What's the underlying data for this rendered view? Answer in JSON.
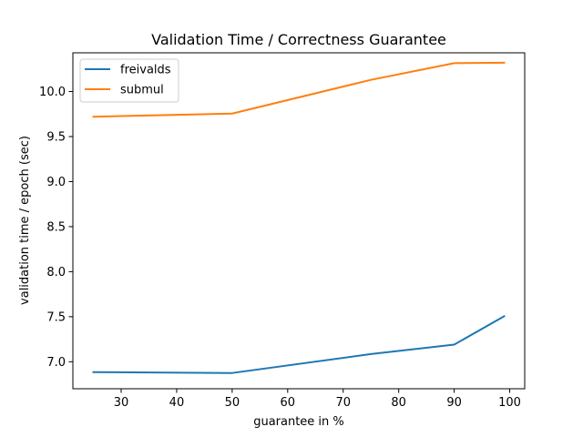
{
  "chart_data": {
    "type": "line",
    "title": "Validation Time / Correctness Guarantee",
    "xlabel": "guarantee in %",
    "ylabel": "validation time / epoch (sec)",
    "x": [
      25,
      50,
      75,
      90,
      99
    ],
    "series": [
      {
        "name": "freivalds",
        "color": "#1f77b4",
        "values": [
          6.885,
          6.875,
          7.085,
          7.19,
          7.505
        ]
      },
      {
        "name": "submul",
        "color": "#ff7f0e",
        "values": [
          9.72,
          9.755,
          10.13,
          10.315,
          10.32
        ]
      }
    ],
    "xlim": [
      21.3,
      102.7
    ],
    "ylim": [
      6.7,
      10.43
    ],
    "xticks": [
      30,
      40,
      50,
      60,
      70,
      80,
      90,
      100
    ],
    "yticks": [
      7.0,
      7.5,
      8.0,
      8.5,
      9.0,
      9.5,
      10.0
    ],
    "xtick_labels": [
      "30",
      "40",
      "50",
      "60",
      "70",
      "80",
      "90",
      "100"
    ],
    "ytick_labels": [
      "7.0",
      "7.5",
      "8.0",
      "8.5",
      "9.0",
      "9.5",
      "10.0"
    ],
    "grid": false,
    "legend_position": "top-left"
  }
}
